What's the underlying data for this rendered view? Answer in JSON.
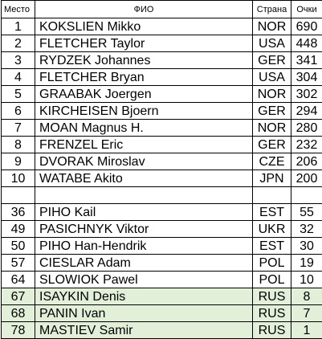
{
  "header": {
    "place": "Место",
    "name": "ФИО",
    "country": "Страна",
    "points": "Очки"
  },
  "top_rows": [
    {
      "place": "1",
      "name": "KOKSLIEN Mikko",
      "country": "NOR",
      "points": "690"
    },
    {
      "place": "2",
      "name": "FLETCHER Taylor",
      "country": "USA",
      "points": "448"
    },
    {
      "place": "3",
      "name": "RYDZEK Johannes",
      "country": "GER",
      "points": "341"
    },
    {
      "place": "4",
      "name": "FLETCHER Bryan",
      "country": "USA",
      "points": "304"
    },
    {
      "place": "5",
      "name": "GRAABAK Joergen",
      "country": "NOR",
      "points": "302"
    },
    {
      "place": "6",
      "name": "KIRCHEISEN Bjoern",
      "country": "GER",
      "points": "294"
    },
    {
      "place": "7",
      "name": "MOAN Magnus H.",
      "country": "NOR",
      "points": "280"
    },
    {
      "place": "8",
      "name": "FRENZEL Eric",
      "country": "GER",
      "points": "232"
    },
    {
      "place": "9",
      "name": "DVORAK Miroslav",
      "country": "CZE",
      "points": "206"
    },
    {
      "place": "10",
      "name": "WATABE Akito",
      "country": "JPN",
      "points": "200"
    }
  ],
  "other_rows": [
    {
      "place": "36",
      "name": "PIHO Kail",
      "country": "EST",
      "points": "55"
    },
    {
      "place": "49",
      "name": "PASICHNYK Viktor",
      "country": "UKR",
      "points": "32"
    },
    {
      "place": "50",
      "name": "PIHO Han-Hendrik",
      "country": "EST",
      "points": "30"
    },
    {
      "place": "57",
      "name": "CIESLAR Adam",
      "country": "POL",
      "points": "19"
    },
    {
      "place": "64",
      "name": "SLOWIOK Pawel",
      "country": "POL",
      "points": "10"
    }
  ],
  "highlighted_rows": [
    {
      "place": "67",
      "name": "ISAYKIN Denis",
      "country": "RUS",
      "points": "8"
    },
    {
      "place": "68",
      "name": "PANIN Ivan",
      "country": "RUS",
      "points": "7"
    },
    {
      "place": "78",
      "name": "MASTIEV Samir",
      "country": "RUS",
      "points": "1"
    }
  ],
  "colors": {
    "highlight_background": "#e2efd9",
    "border": "#000000"
  }
}
